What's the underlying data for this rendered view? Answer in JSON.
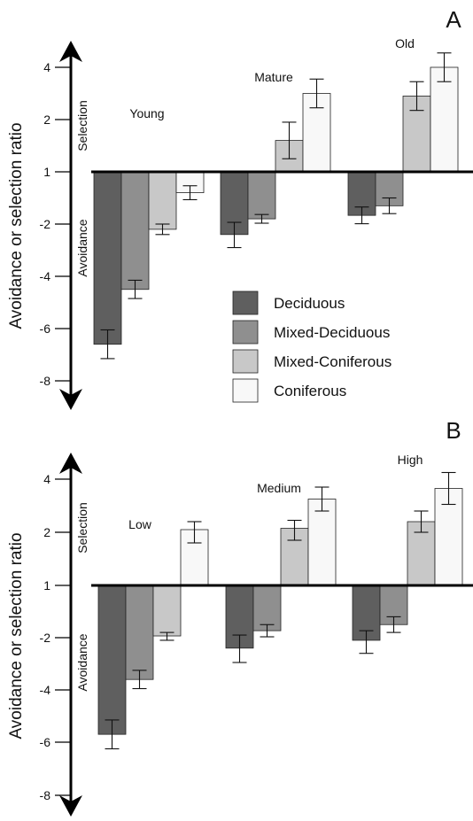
{
  "colors": {
    "deciduous": "#5f5f5f",
    "mixed_deciduous": "#8f8f8f",
    "mixed_coniferous": "#c8c8c8",
    "coniferous": "#f8f8f8",
    "axis": "#000000"
  },
  "chart_data": [
    {
      "type": "bar",
      "panel_label": "A",
      "ylabel": "Avoidance or selection ratio",
      "upper_label": "Selection",
      "lower_label": "Avoidance",
      "baseline": 1,
      "yticks": [
        "4",
        "2",
        "1",
        "-2",
        "-4",
        "-6",
        "-8"
      ],
      "categories": [
        "Young",
        "Mature",
        "Old"
      ],
      "series": [
        {
          "name": "Deciduous",
          "values": [
            -6.6,
            -2.4,
            -1.5
          ],
          "errors": [
            0.55,
            0.5,
            0.48
          ]
        },
        {
          "name": "Mixed-Deciduous",
          "values": [
            -4.5,
            -1.7,
            -0.95
          ],
          "errors": [
            0.35,
            0.25,
            0.45
          ]
        },
        {
          "name": "Mixed-Coniferous",
          "values": [
            -2.2,
            1.6,
            2.9
          ],
          "errors": [
            0.2,
            0.35,
            0.55
          ]
        },
        {
          "name": "Coniferous",
          "values": [
            -0.2,
            3.0,
            4.0
          ],
          "errors": [
            0.4,
            0.55,
            0.55
          ]
        }
      ],
      "legend": [
        "Deciduous",
        "Mixed-Deciduous",
        "Mixed-Coniferous",
        "Coniferous"
      ],
      "legend_position": "center-right"
    },
    {
      "type": "bar",
      "panel_label": "B",
      "ylabel": "Avoidance or selection ratio",
      "upper_label": "Selection",
      "lower_label": "Avoidance",
      "baseline": 1,
      "yticks": [
        "4",
        "2",
        "1",
        "-2",
        "-4",
        "-6",
        "-8"
      ],
      "categories": [
        "Low",
        "Medium",
        "High"
      ],
      "series": [
        {
          "name": "Deciduous",
          "values": [
            -5.7,
            -2.4,
            -2.1
          ],
          "errors": [
            0.55,
            0.55,
            0.5
          ]
        },
        {
          "name": "Mixed-Deciduous",
          "values": [
            -3.6,
            -1.6,
            -1.25
          ],
          "errors": [
            0.35,
            0.35,
            0.45
          ]
        },
        {
          "name": "Mixed-Coniferous",
          "values": [
            -1.9,
            2.15,
            2.4
          ],
          "errors": [
            0.2,
            0.3,
            0.4
          ]
        },
        {
          "name": "Coniferous",
          "values": [
            2.1,
            3.25,
            3.65
          ],
          "errors": [
            0.3,
            0.45,
            0.6
          ]
        }
      ]
    }
  ]
}
